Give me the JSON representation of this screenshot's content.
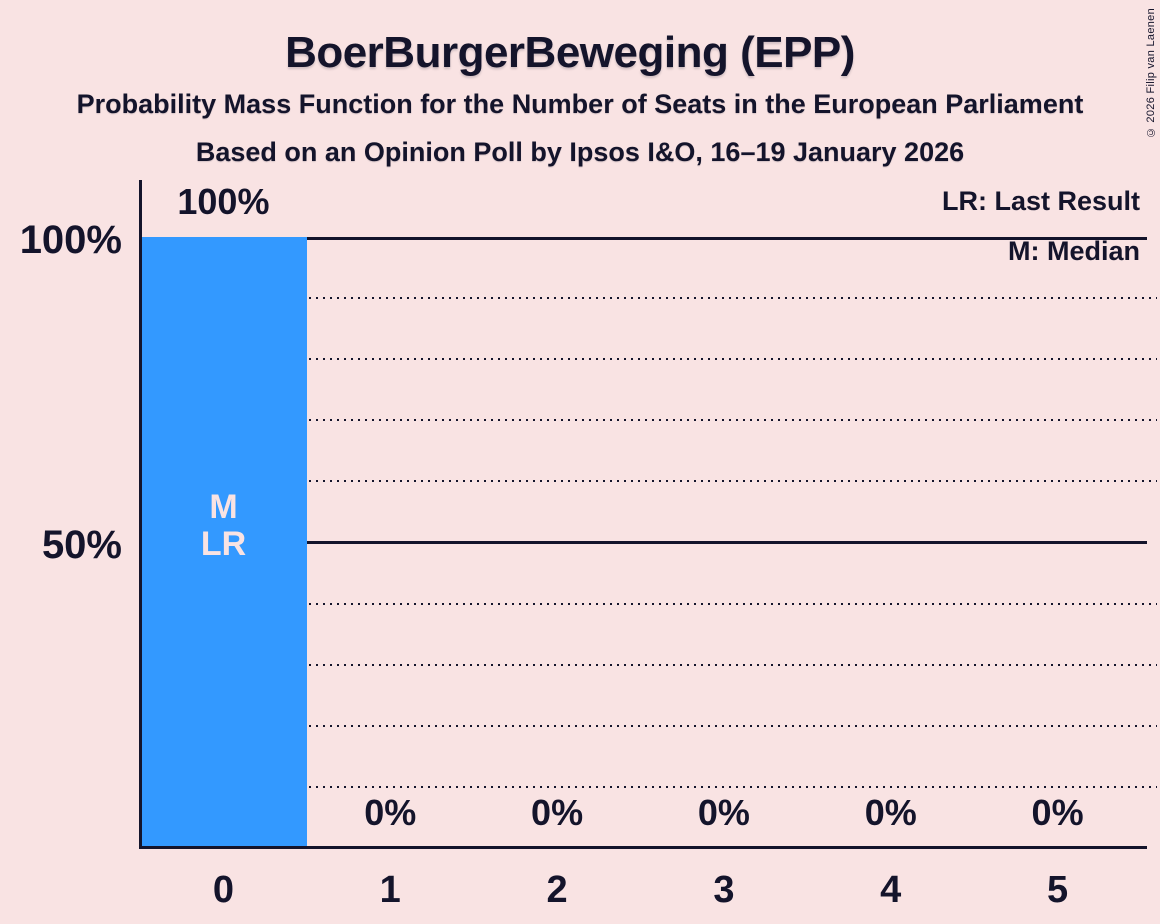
{
  "title": "BoerBurgerBeweging (EPP)",
  "subtitle": "Probability Mass Function for the Number of Seats in the European Parliament",
  "poll_info": "Based on an Opinion Poll by Ipsos I&O, 16–19 January 2026",
  "copyright": "© 2026 Filip van Laenen",
  "legend": {
    "last_result": "LR: Last Result",
    "median": "M: Median"
  },
  "y_axis": {
    "labels": [
      "100%",
      "50%"
    ]
  },
  "chart_data": {
    "type": "bar",
    "title": "BoerBurgerBeweging (EPP)",
    "categories": [
      "0",
      "1",
      "2",
      "3",
      "4",
      "5"
    ],
    "values": [
      100,
      0,
      0,
      0,
      0,
      0
    ],
    "bar_value_labels": [
      "100%",
      "0%",
      "0%",
      "0%",
      "0%",
      "0%"
    ],
    "ylim": [
      0,
      100
    ],
    "gridline_interval_pct": 10,
    "solid_gridlines_pct": [
      100,
      50
    ],
    "dotted_gridlines_pct": [
      90,
      80,
      70,
      60,
      40,
      30,
      20,
      10
    ],
    "legend_position": "top-right",
    "median_marker": "M",
    "last_result_marker": "LR",
    "median_seats": "0",
    "last_result_seats": "0",
    "colors": {
      "bar": "#3399ff",
      "background": "#f9e3e3",
      "text": "#14142b",
      "bar_marker_text": "#f9e3e3"
    }
  }
}
